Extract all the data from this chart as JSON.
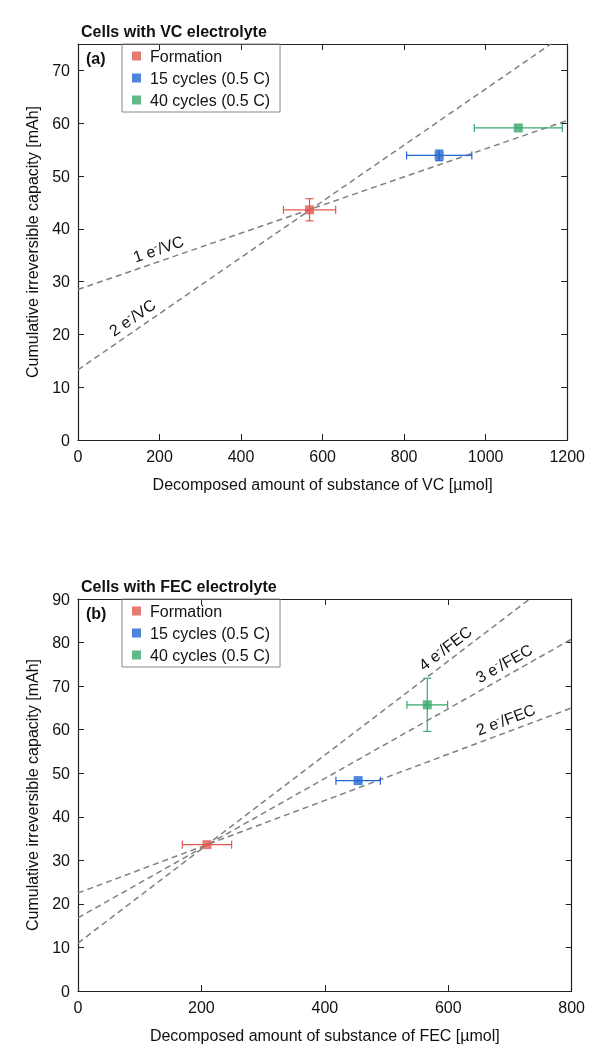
{
  "chart_data": [
    {
      "type": "scatter",
      "title": "Cells with VC electrolyte",
      "xlabel": "Decomposed amount of substance of VC [µmol]",
      "ylabel": "Cumulative irreversible capacity [mAh]",
      "xlim": [
        0,
        1200
      ],
      "ylim": [
        0,
        75
      ],
      "xticks": [
        0,
        200,
        400,
        600,
        800,
        1000,
        1200
      ],
      "yticks": [
        0,
        10,
        20,
        30,
        40,
        50,
        60,
        70
      ],
      "marker": "square",
      "legend": "top left",
      "grid": false,
      "annotations": [
        "(a)",
        {
          "text": "1 e$^{-}$/VC",
          "x": 207,
          "y": 34.0
        },
        {
          "text": "2 e$^{-}$/VC",
          "x": 150,
          "y": 21.3
        }
      ],
      "series": [
        {
          "type": "line",
          "color": "#808080",
          "line_style": "dashed",
          "marker": "none",
          "x": [
            0,
            1200
          ],
          "values": [
            28.5,
            60.5
          ]
        },
        {
          "type": "line",
          "color": "#808080",
          "line_style": "dashed",
          "marker": "none",
          "x": [
            0,
            1160
          ],
          "values": [
            13.3,
            75
          ]
        },
        {
          "name": "Formation",
          "color": "#e05a50",
          "x": [
            568
          ],
          "values": [
            43.6
          ],
          "errors": [
            2.1
          ],
          "xerrors": [
            64
          ]
        },
        {
          "name": "15 cycles (0.5 C)",
          "color": "#1f66d0",
          "x": [
            886
          ],
          "values": [
            53.9
          ],
          "errors": [
            1
          ],
          "xerrors": [
            80
          ]
        },
        {
          "name": "40 cycles (0.5 C)",
          "color": "#3aa86b",
          "x": [
            1080
          ],
          "values": [
            59.1
          ],
          "xerrors": [
            108
          ]
        }
      ]
    },
    {
      "type": "scatter",
      "title": "Cells with FEC electrolyte",
      "xlabel": "Decomposed amount of substance of FEC [µmol]",
      "ylabel": "Cumulative irreversible capacity [mAh]",
      "xlim": [
        0,
        800
      ],
      "ylim": [
        0,
        90
      ],
      "xticks": [
        0,
        200,
        400,
        600,
        800
      ],
      "yticks": [
        0,
        10,
        20,
        30,
        40,
        50,
        60,
        70,
        80,
        90
      ],
      "marker": "square",
      "legend": "top left",
      "grid": false,
      "annotations": [
        "(b)",
        {
          "text": "4 e$^{-}$/FEC",
          "x": 607,
          "y": 76.5
        },
        {
          "text": "3 e$^{-}$/FEC",
          "x": 700,
          "y": 72.8
        },
        {
          "text": "2 e$^{-}$/FEC",
          "x": 700,
          "y": 59.7
        }
      ],
      "series": [
        {
          "type": "line",
          "color": "#808080",
          "line_style": "dashed",
          "marker": "none",
          "x": [
            0,
            800
          ],
          "values": [
            22.5,
            65
          ]
        },
        {
          "type": "line",
          "color": "#808080",
          "line_style": "dashed",
          "marker": "none",
          "x": [
            0,
            800
          ],
          "values": [
            16.8,
            80.8
          ]
        },
        {
          "type": "line",
          "color": "#808080",
          "line_style": "dashed",
          "marker": "none",
          "x": [
            0,
            732
          ],
          "values": [
            11,
            90
          ]
        },
        {
          "name": "Formation",
          "color": "#e05a50",
          "x": [
            209
          ],
          "values": [
            33.6
          ],
          "xerrors": [
            40
          ]
        },
        {
          "name": "15 cycles (0.5 C)",
          "color": "#1f66d0",
          "x": [
            454
          ],
          "values": [
            48.3
          ],
          "xerrors": [
            36
          ]
        },
        {
          "name": "40 cycles (0.5 C)",
          "color": "#3aa86b",
          "x": [
            566
          ],
          "values": [
            65.7
          ],
          "errors": [
            6.1
          ],
          "xerrors": [
            33
          ]
        }
      ]
    }
  ]
}
